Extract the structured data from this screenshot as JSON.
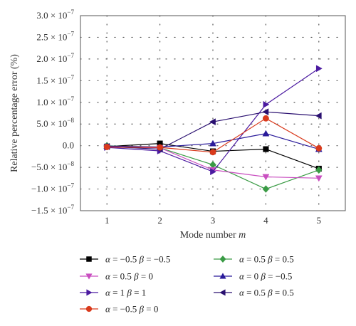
{
  "chart_data": {
    "type": "line",
    "xlabel": "Mode number m",
    "ylabel": "Relative percentage error (%)",
    "x": [
      1,
      2,
      3,
      4,
      5
    ],
    "xlim": [
      0.5,
      5.5
    ],
    "ylim": [
      -1.5e-07,
      3e-07
    ],
    "x_ticks": [
      "1",
      "2",
      "3",
      "4",
      "5"
    ],
    "y_ticks": [
      {
        "value": 3e-07,
        "mantissa": "3.0 × 10",
        "exp": "−7"
      },
      {
        "value": 2.5e-07,
        "mantissa": "2.5 × 10",
        "exp": "−7"
      },
      {
        "value": 2e-07,
        "mantissa": "2.0 × 10",
        "exp": "−7"
      },
      {
        "value": 1.5e-07,
        "mantissa": "1.5 × 10",
        "exp": "−7"
      },
      {
        "value": 1e-07,
        "mantissa": "1.0 × 10",
        "exp": "−7"
      },
      {
        "value": 5e-08,
        "mantissa": "5.0 × 10",
        "exp": "−8"
      },
      {
        "value": 0,
        "mantissa": "0.0",
        "exp": ""
      },
      {
        "value": -5e-08,
        "mantissa": "−5.0 × 10",
        "exp": "−8"
      },
      {
        "value": -1e-07,
        "mantissa": "−1.0 × 10",
        "exp": "−7"
      },
      {
        "value": -1.5e-07,
        "mantissa": "−1.5 × 10",
        "exp": "−7"
      }
    ],
    "grid": true,
    "legend_position": "bottom",
    "series": [
      {
        "name": "α = −0.5 β = −0.5",
        "color": "#000000",
        "marker": "square",
        "values": [
          -2e-09,
          5e-09,
          -1.3e-08,
          -8e-09,
          -5.3e-08
        ]
      },
      {
        "name": "α = 0.5 β = 0.5",
        "color": "#3a9b45",
        "marker": "diamond",
        "values": [
          0.0,
          -5e-09,
          -4.4e-08,
          -1e-07,
          -5.6e-08
        ]
      },
      {
        "name": "α = 0.5 β = 0",
        "color": "#c94fc0",
        "marker": "triangle-down",
        "values": [
          -3e-09,
          -5e-09,
          -5.6e-08,
          -7.2e-08,
          -7.5e-08
        ]
      },
      {
        "name": "α = 0 β = −0.5",
        "color": "#2a1b9a",
        "marker": "triangle-up",
        "values": [
          -1e-09,
          -3e-09,
          5e-09,
          2.8e-08,
          -8e-09
        ]
      },
      {
        "name": "α = 1 β = 1",
        "color": "#4b1aa0",
        "marker": "triangle-right",
        "values": [
          -4e-09,
          -1.2e-08,
          -6e-08,
          9.5e-08,
          1.78e-07
        ]
      },
      {
        "name": "α = 0.5 β = 0.5",
        "color": "#2a1070",
        "marker": "triangle-left",
        "values": [
          -2e-09,
          -8e-09,
          5.5e-08,
          7.8e-08,
          6.9e-08
        ]
      },
      {
        "name": "α = −0.5 β = 0",
        "color": "#d93a1c",
        "marker": "circle",
        "values": [
          -3e-09,
          -4e-09,
          -1.5e-08,
          6.3e-08,
          -6e-09
        ]
      }
    ],
    "legend_order": [
      0,
      1,
      2,
      3,
      4,
      5,
      6
    ]
  }
}
